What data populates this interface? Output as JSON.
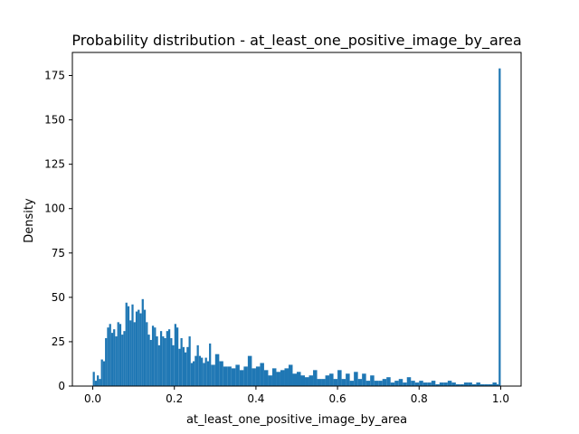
{
  "chart_data": {
    "type": "bar",
    "title": "Probability distribution - at_least_one_positive_image_by_area",
    "xlabel": "at_least_one_positive_image_by_area",
    "ylabel": "Density",
    "xlim": [
      -0.05,
      1.05
    ],
    "ylim": [
      0,
      188
    ],
    "xticks": [
      0.0,
      0.2,
      0.4,
      0.6,
      0.8,
      1.0
    ],
    "xtick_labels": [
      "0.0",
      "0.2",
      "0.4",
      "0.6",
      "0.8",
      "1.0"
    ],
    "yticks": [
      0,
      25,
      50,
      75,
      100,
      125,
      150,
      175
    ],
    "ytick_labels": [
      "0",
      "25",
      "50",
      "75",
      "100",
      "125",
      "150",
      "175"
    ],
    "grid": false,
    "bin_width": 0.005,
    "color": "#1f77b4",
    "series": [
      {
        "x_start": [
          0.0,
          0.005,
          0.01,
          0.015,
          0.02,
          0.025,
          0.03,
          0.035,
          0.04,
          0.045,
          0.05,
          0.055,
          0.06,
          0.065,
          0.07,
          0.075,
          0.08,
          0.085,
          0.09,
          0.095,
          0.1,
          0.105,
          0.11,
          0.115,
          0.12,
          0.125,
          0.13,
          0.135,
          0.14,
          0.145,
          0.15,
          0.155,
          0.16,
          0.165,
          0.17,
          0.175,
          0.18,
          0.185,
          0.19,
          0.195,
          0.2,
          0.205,
          0.21,
          0.215,
          0.22,
          0.225,
          0.23,
          0.235,
          0.24,
          0.245,
          0.25,
          0.255,
          0.26,
          0.265,
          0.27,
          0.275,
          0.28,
          0.285,
          0.29,
          0.295,
          0.3,
          0.31,
          0.32,
          0.33,
          0.34,
          0.35,
          0.36,
          0.37,
          0.38,
          0.39,
          0.4,
          0.41,
          0.42,
          0.43,
          0.44,
          0.45,
          0.46,
          0.47,
          0.48,
          0.49,
          0.5,
          0.51,
          0.52,
          0.53,
          0.54,
          0.55,
          0.56,
          0.57,
          0.58,
          0.59,
          0.6,
          0.61,
          0.62,
          0.63,
          0.64,
          0.65,
          0.66,
          0.67,
          0.68,
          0.69,
          0.7,
          0.71,
          0.72,
          0.73,
          0.74,
          0.75,
          0.76,
          0.77,
          0.78,
          0.79,
          0.8,
          0.81,
          0.82,
          0.83,
          0.84,
          0.85,
          0.86,
          0.87,
          0.88,
          0.89,
          0.9,
          0.91,
          0.92,
          0.93,
          0.94,
          0.95,
          0.96,
          0.97,
          0.98,
          0.99,
          0.995
        ],
        "widths": [
          0.005,
          0.005,
          0.005,
          0.005,
          0.005,
          0.005,
          0.005,
          0.005,
          0.005,
          0.005,
          0.005,
          0.005,
          0.005,
          0.005,
          0.005,
          0.005,
          0.005,
          0.005,
          0.005,
          0.005,
          0.005,
          0.005,
          0.005,
          0.005,
          0.005,
          0.005,
          0.005,
          0.005,
          0.005,
          0.005,
          0.005,
          0.005,
          0.005,
          0.005,
          0.005,
          0.005,
          0.005,
          0.005,
          0.005,
          0.005,
          0.005,
          0.005,
          0.005,
          0.005,
          0.005,
          0.005,
          0.005,
          0.005,
          0.005,
          0.005,
          0.005,
          0.005,
          0.005,
          0.005,
          0.005,
          0.005,
          0.005,
          0.005,
          0.005,
          0.005,
          0.01,
          0.01,
          0.01,
          0.01,
          0.01,
          0.01,
          0.01,
          0.01,
          0.01,
          0.01,
          0.01,
          0.01,
          0.01,
          0.01,
          0.01,
          0.01,
          0.01,
          0.01,
          0.01,
          0.01,
          0.01,
          0.01,
          0.01,
          0.01,
          0.01,
          0.01,
          0.01,
          0.01,
          0.01,
          0.01,
          0.01,
          0.01,
          0.01,
          0.01,
          0.01,
          0.01,
          0.01,
          0.01,
          0.01,
          0.01,
          0.01,
          0.01,
          0.01,
          0.01,
          0.01,
          0.01,
          0.01,
          0.01,
          0.01,
          0.01,
          0.01,
          0.01,
          0.01,
          0.01,
          0.01,
          0.01,
          0.01,
          0.01,
          0.01,
          0.01,
          0.01,
          0.01,
          0.01,
          0.01,
          0.01,
          0.01,
          0.01,
          0.01,
          0.01,
          0.005,
          0.005
        ],
        "values": [
          8,
          3,
          6,
          4,
          15,
          14,
          27,
          33,
          35,
          30,
          32,
          28,
          36,
          35,
          29,
          31,
          47,
          45,
          37,
          46,
          36,
          42,
          43,
          41,
          49,
          43,
          36,
          29,
          26,
          34,
          33,
          28,
          23,
          31,
          28,
          27,
          31,
          32,
          27,
          23,
          35,
          33,
          21,
          27,
          22,
          19,
          22,
          28,
          13,
          14,
          17,
          23,
          17,
          16,
          13,
          16,
          14,
          24,
          12,
          12,
          18,
          14,
          11,
          11,
          10,
          12,
          9,
          11,
          17,
          10,
          11,
          13,
          9,
          6,
          10,
          8,
          9,
          10,
          12,
          7,
          8,
          6,
          5,
          6,
          9,
          4,
          4,
          6,
          7,
          4,
          9,
          4,
          7,
          3,
          8,
          4,
          7,
          3,
          6,
          3,
          3,
          4,
          5,
          2,
          3,
          4,
          2,
          5,
          3,
          2,
          3,
          2,
          2,
          3,
          1,
          2,
          2,
          3,
          2,
          1,
          1,
          2,
          2,
          1,
          2,
          1,
          1,
          1,
          2,
          1,
          179
        ]
      }
    ]
  }
}
